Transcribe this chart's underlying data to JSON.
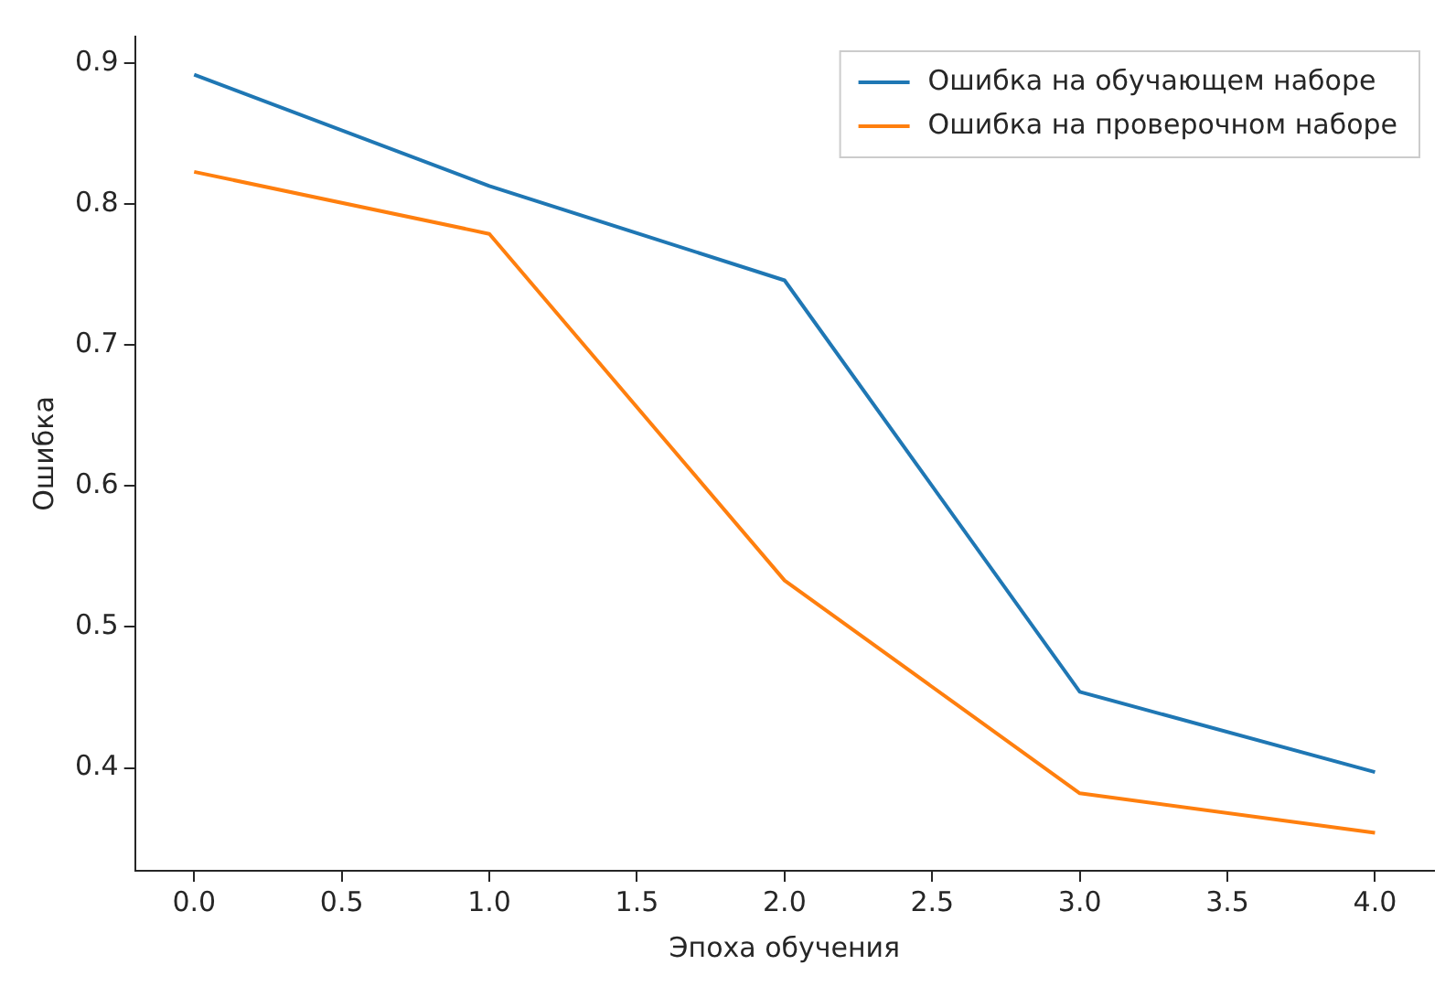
{
  "chart_data": {
    "type": "line",
    "xlabel": "Эпоха обучения",
    "ylabel": "Ошибка",
    "x": [
      0,
      1,
      2,
      3,
      4
    ],
    "series": [
      {
        "name": "Ошибка на обучающем наборе",
        "color": "#1f77b4",
        "values": [
          0.892,
          0.813,
          0.746,
          0.454,
          0.397
        ]
      },
      {
        "name": "Ошибка на проверочном наборе",
        "color": "#ff7f0e",
        "values": [
          0.823,
          0.779,
          0.533,
          0.382,
          0.354
        ]
      }
    ],
    "xlim": [
      -0.2,
      4.2
    ],
    "xticks": [
      {
        "value": 0,
        "label": "0.0"
      },
      {
        "value": 0.5,
        "label": "0.5"
      },
      {
        "value": 1,
        "label": "1.0"
      },
      {
        "value": 1.5,
        "label": "1.5"
      },
      {
        "value": 2,
        "label": "2.0"
      },
      {
        "value": 2.5,
        "label": "2.5"
      },
      {
        "value": 3,
        "label": "3.0"
      },
      {
        "value": 3.5,
        "label": "3.5"
      },
      {
        "value": 4,
        "label": "4.0"
      }
    ],
    "ylim": [
      0.327,
      0.919
    ],
    "yticks": [
      0.4,
      0.5,
      0.6,
      0.7,
      0.8,
      0.9
    ],
    "grid": false,
    "legend": "top right",
    "marker": "none",
    "line_style": "solid"
  }
}
